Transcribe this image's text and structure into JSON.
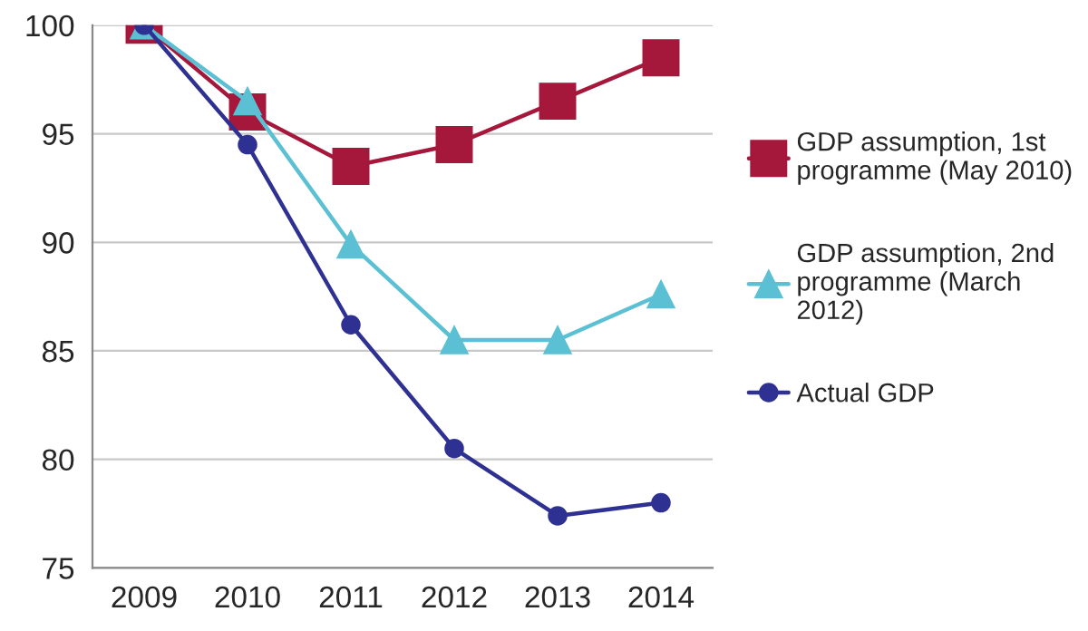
{
  "chart_data": {
    "type": "line",
    "categories": [
      "2009",
      "2010",
      "2011",
      "2012",
      "2013",
      "2014"
    ],
    "series": [
      {
        "name": "GDP assumption, 1st programme (May 2010)",
        "color": "#a6173c",
        "marker": "square",
        "values": [
          100,
          96.0,
          93.5,
          94.5,
          96.5,
          98.5
        ]
      },
      {
        "name": "GDP assumption, 2nd programme (March 2012)",
        "color": "#5bc0d3",
        "marker": "triangle",
        "values": [
          100,
          96.5,
          89.9,
          85.5,
          85.5,
          87.6
        ]
      },
      {
        "name": "Actual GDP",
        "color": "#2e3192",
        "marker": "circle",
        "values": [
          100,
          94.5,
          86.2,
          80.5,
          77.4,
          78.0
        ]
      }
    ],
    "ylim": [
      75,
      100
    ],
    "yticks": [
      75,
      80,
      85,
      90,
      95,
      100
    ],
    "grid": "y",
    "legend": "right",
    "line_style": "solid"
  }
}
